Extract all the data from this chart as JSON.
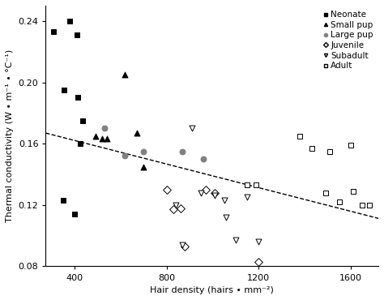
{
  "title": "",
  "xlabel": "Hair density (hairs • mm⁻²)",
  "ylabel": "Thermal conductivity (W • m⁻¹ • °C⁻¹)",
  "xlim": [
    275,
    1720
  ],
  "ylim": [
    0.08,
    0.25
  ],
  "xticks": [
    400,
    800,
    1200,
    1600
  ],
  "yticks": [
    0.08,
    0.12,
    0.16,
    0.2,
    0.24
  ],
  "neonate": {
    "x": [
      310,
      355,
      380,
      410,
      415,
      425,
      435,
      350,
      400
    ],
    "y": [
      0.233,
      0.195,
      0.24,
      0.231,
      0.19,
      0.16,
      0.175,
      0.123,
      0.114
    ],
    "color": "black",
    "marker": "s",
    "filled": true,
    "ms": 5,
    "label": "Neonate"
  },
  "small_pup": {
    "x": [
      490,
      520,
      540,
      620,
      670,
      700
    ],
    "y": [
      0.165,
      0.163,
      0.163,
      0.205,
      0.167,
      0.145
    ],
    "color": "black",
    "marker": "^",
    "filled": true,
    "ms": 5,
    "label": "Small pup"
  },
  "large_pup": {
    "x": [
      530,
      620,
      700,
      870,
      960
    ],
    "y": [
      0.17,
      0.152,
      0.155,
      0.155,
      0.15
    ],
    "color": "gray",
    "marker": "o",
    "filled": true,
    "ms": 5,
    "label": "Large pup"
  },
  "juvenile": {
    "x": [
      800,
      830,
      860,
      880,
      970,
      1010,
      1200
    ],
    "y": [
      0.13,
      0.117,
      0.118,
      0.093,
      0.13,
      0.128,
      0.083
    ],
    "color": "white",
    "edgecolor": "black",
    "marker": "D",
    "filled": false,
    "ms": 5,
    "label": "Juvenile"
  },
  "subadult": {
    "x": [
      840,
      870,
      910,
      950,
      1010,
      1050,
      1060,
      1100,
      1150,
      1200
    ],
    "y": [
      0.12,
      0.094,
      0.17,
      0.128,
      0.126,
      0.123,
      0.112,
      0.097,
      0.125,
      0.096
    ],
    "color": "white",
    "edgecolor": "black",
    "marker": "v",
    "filled": false,
    "ms": 5,
    "label": "Subadult"
  },
  "adult": {
    "x": [
      1150,
      1190,
      1380,
      1430,
      1490,
      1510,
      1550,
      1600,
      1610,
      1650,
      1680
    ],
    "y": [
      0.133,
      0.133,
      0.165,
      0.157,
      0.128,
      0.155,
      0.122,
      0.159,
      0.129,
      0.12,
      0.12
    ],
    "color": "white",
    "edgecolor": "black",
    "marker": "s",
    "filled": false,
    "ms": 5,
    "label": "Adult"
  },
  "regression": {
    "x_start": 275,
    "x_end": 1720,
    "slope": -3.85e-05,
    "intercept": 0.1775,
    "color": "black",
    "linestyle": "--",
    "linewidth": 1.0
  },
  "legend": {
    "fontsize": 7.5,
    "markersize": 3
  }
}
